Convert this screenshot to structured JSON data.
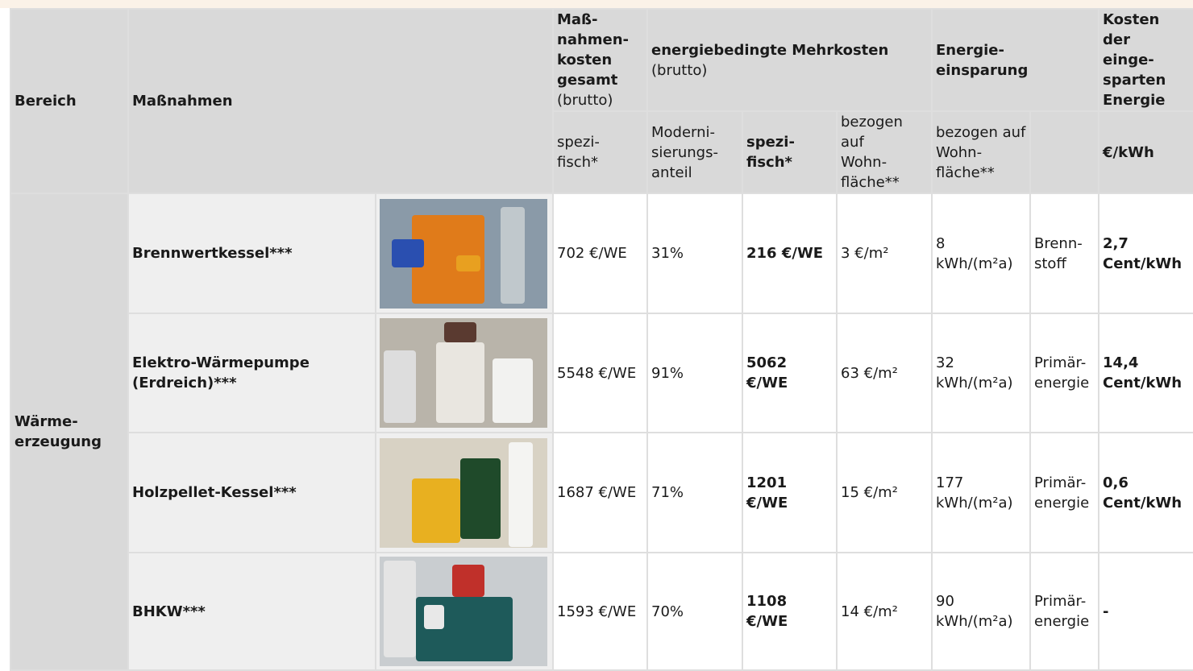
{
  "table": {
    "header": {
      "bereich": "Bereich",
      "massnahmen": "Maßnahmen",
      "kosten_gesamt": {
        "lines": [
          "Maß-",
          "nahmen-",
          "kosten",
          "gesamt"
        ],
        "note": "(brutto)"
      },
      "mehrkosten": {
        "title": "energiebedingte Mehrkosten",
        "note": "(brutto)"
      },
      "einsparung": [
        "Energie-",
        "einsparung"
      ],
      "kosten_energie": [
        "Kosten der",
        "einge-",
        "sparten",
        "Energie"
      ]
    },
    "subheader": [
      [
        "spezi-",
        "fisch*"
      ],
      [
        "Moderni-",
        "sierungs-",
        "anteil"
      ],
      [
        "spezi-",
        "fisch*"
      ],
      [
        "bezogen auf",
        "Wohn-",
        "fläche**"
      ],
      [
        "bezogen auf",
        "Wohn-",
        "fläche**"
      ],
      [
        "€/kWh"
      ]
    ],
    "bereich": [
      "Wärme-",
      "erzeugung"
    ],
    "rows": [
      {
        "massnahme": [
          "Brennwertkessel***"
        ],
        "kosten": "702 €/WE",
        "anteil": "31%",
        "spezifisch": "216 €/WE",
        "flaeche": "3 €/m²",
        "einsparung": [
          "8 kWh/(m²a)"
        ],
        "bezug": [
          "Brenn-",
          "stoff"
        ],
        "energiekosten": [
          "2,7",
          "Cent/kWh"
        ]
      },
      {
        "massnahme": [
          "Elektro-Wärmepumpe",
          "(Erdreich)***"
        ],
        "kosten": "5548 €/WE",
        "anteil": "91%",
        "spezifisch": "5062 €/WE",
        "flaeche": "63 €/m²",
        "einsparung": [
          "32",
          "kWh/(m²a)"
        ],
        "bezug": [
          "Primär-",
          "energie"
        ],
        "energiekosten": [
          "14,4",
          "Cent/kWh"
        ]
      },
      {
        "massnahme": [
          "Holzpellet-Kessel***"
        ],
        "kosten": "1687 €/WE",
        "anteil": "71%",
        "spezifisch": "1201 €/WE",
        "flaeche": "15 €/m²",
        "einsparung": [
          "177",
          "kWh/(m²a)"
        ],
        "bezug": [
          "Primär-",
          "energie"
        ],
        "energiekosten": [
          "0,6",
          "Cent/kWh"
        ]
      },
      {
        "massnahme": [
          "BHKW***"
        ],
        "kosten": "1593 €/WE",
        "anteil": "70%",
        "spezifisch": "1108 €/WE",
        "flaeche": "14 €/m²",
        "einsparung": [
          "90",
          "kWh/(m²a)"
        ],
        "bezug": [
          "Primär-",
          "energie"
        ],
        "energiekosten": [
          "-"
        ]
      }
    ]
  }
}
